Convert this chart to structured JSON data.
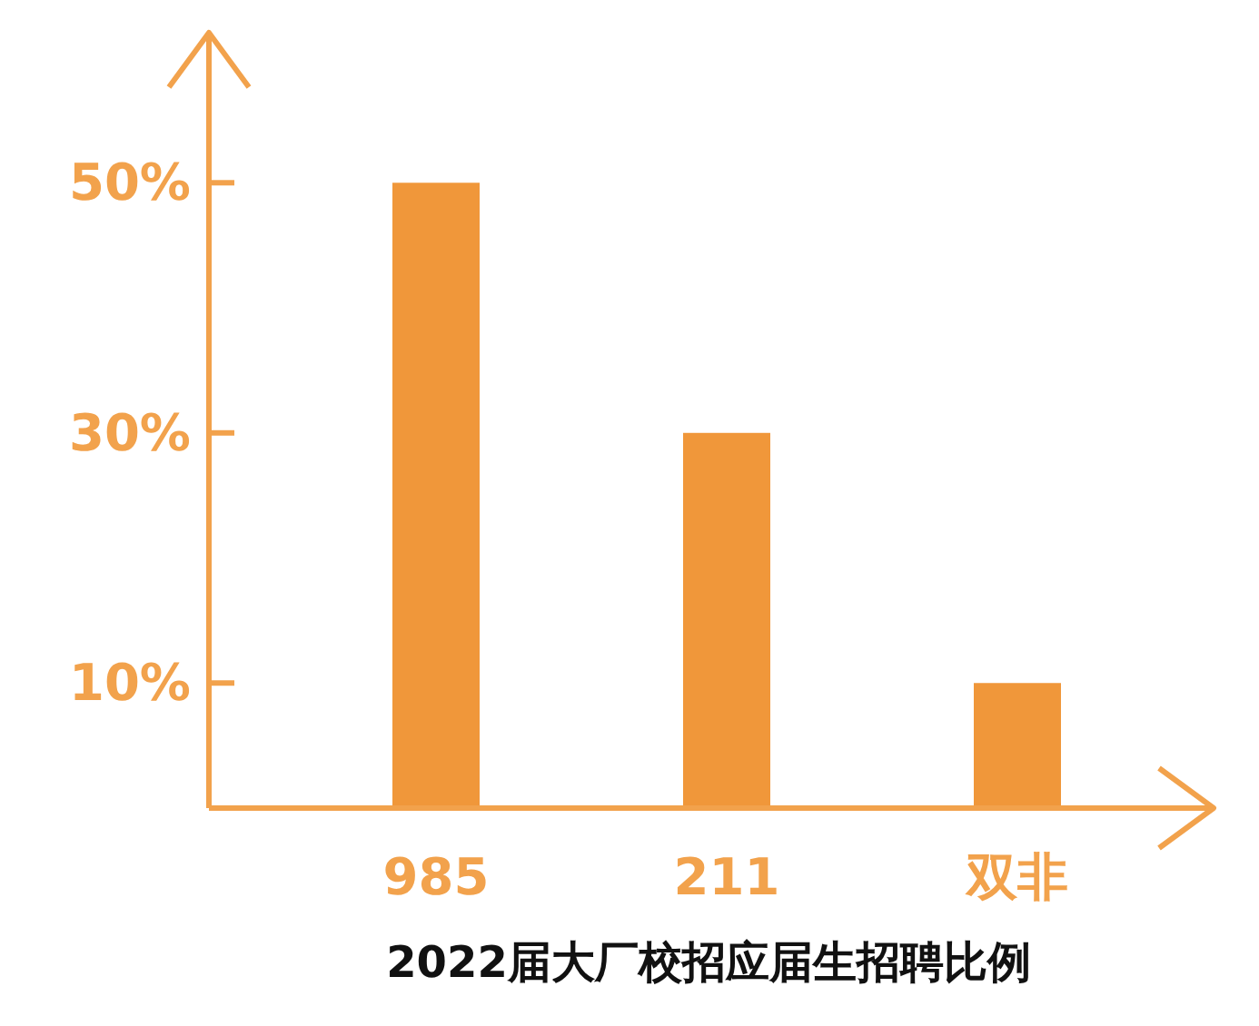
{
  "chart_data": {
    "type": "bar",
    "title": "2022届大厂校招应届生招聘比例",
    "categories": [
      "985",
      "211",
      "双非"
    ],
    "values": [
      50,
      30,
      10
    ],
    "color": "#f0973a",
    "ylim": [
      0,
      62
    ],
    "yticks": [
      {
        "value": 10,
        "label": "10%"
      },
      {
        "value": 30,
        "label": "30%"
      },
      {
        "value": 50,
        "label": "50%"
      }
    ],
    "grid": false
  }
}
